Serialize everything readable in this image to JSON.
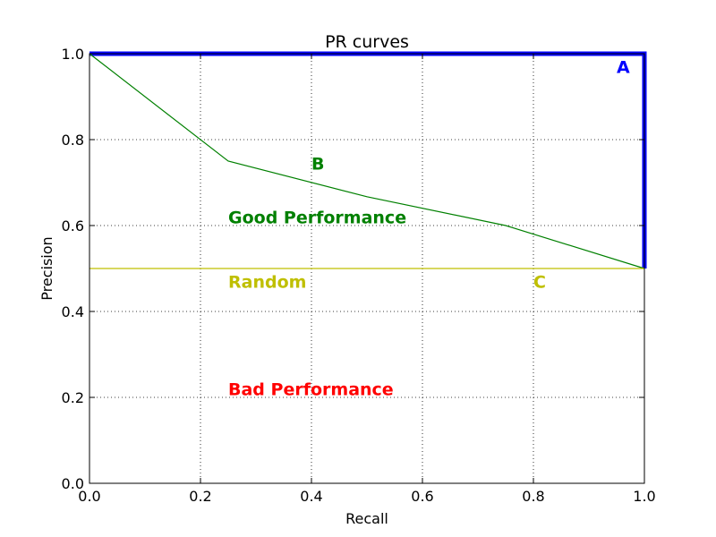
{
  "chart_data": {
    "type": "line",
    "title": "PR curves",
    "xlabel": "Recall",
    "ylabel": "Precision",
    "xlim": [
      0,
      1
    ],
    "ylim": [
      0,
      1
    ],
    "grid": true,
    "x_ticks": [
      "0.0",
      "0.2",
      "0.4",
      "0.6",
      "0.8",
      "1.0"
    ],
    "y_ticks": [
      "0.0",
      "0.2",
      "0.4",
      "0.6",
      "0.8",
      "1.0"
    ],
    "series": [
      {
        "color": "#0000ff",
        "line": "thick",
        "x": [
          0,
          1,
          1
        ],
        "y": [
          1,
          1,
          0.5
        ]
      },
      {
        "color": "#008000",
        "line": "thin",
        "x": [
          0,
          0.25,
          0.5,
          0.75,
          1
        ],
        "y": [
          1,
          0.75,
          0.667,
          0.6,
          0.5
        ]
      },
      {
        "color": "#bfbf00",
        "line": "thin",
        "x": [
          0,
          1
        ],
        "y": [
          0.5,
          0.5
        ]
      }
    ],
    "annotations": [
      {
        "text": "A",
        "x": 0.95,
        "y": 0.955,
        "color": "#0000ff"
      },
      {
        "text": "B",
        "x": 0.4,
        "y": 0.73,
        "color": "#008000"
      },
      {
        "text": "Good Performance",
        "x": 0.25,
        "y": 0.605,
        "color": "#008000"
      },
      {
        "text": "Random",
        "x": 0.25,
        "y": 0.455,
        "color": "#bfbf00"
      },
      {
        "text": "C",
        "x": 0.8,
        "y": 0.455,
        "color": "#bfbf00"
      },
      {
        "text": "Bad Performance",
        "x": 0.25,
        "y": 0.205,
        "color": "#ff0000"
      }
    ]
  }
}
